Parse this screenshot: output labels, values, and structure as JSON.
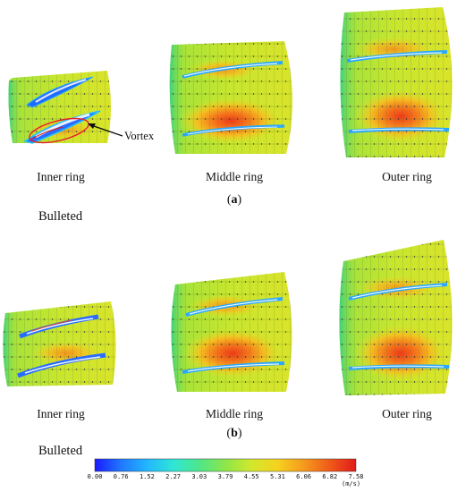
{
  "panels": {
    "a": {
      "letter": "a",
      "bulleted": "Bulleted",
      "labels": [
        "Inner ring",
        "Middle ring",
        "Outer ring"
      ],
      "annotation": "Vortex"
    },
    "b": {
      "letter": "b",
      "bulleted": "Bulleted",
      "labels": [
        "Inner ring",
        "Middle ring",
        "Outer ring"
      ]
    }
  },
  "colorbar": {
    "ticks": [
      "0.00",
      "0.76",
      "1.52",
      "2.27",
      "3.03",
      "3.79",
      "4.55",
      "5.31",
      "6.06",
      "6.82",
      "7.58"
    ],
    "unit": "(m/s)",
    "min": 0.0,
    "max": 7.58,
    "colors": [
      "#1a1aff",
      "#1f78ff",
      "#22c3ff",
      "#2ee6c0",
      "#5ee65a",
      "#a8e83a",
      "#e4e62a",
      "#f5c020",
      "#f5871c",
      "#ef4a1a",
      "#e21a1a"
    ]
  }
}
